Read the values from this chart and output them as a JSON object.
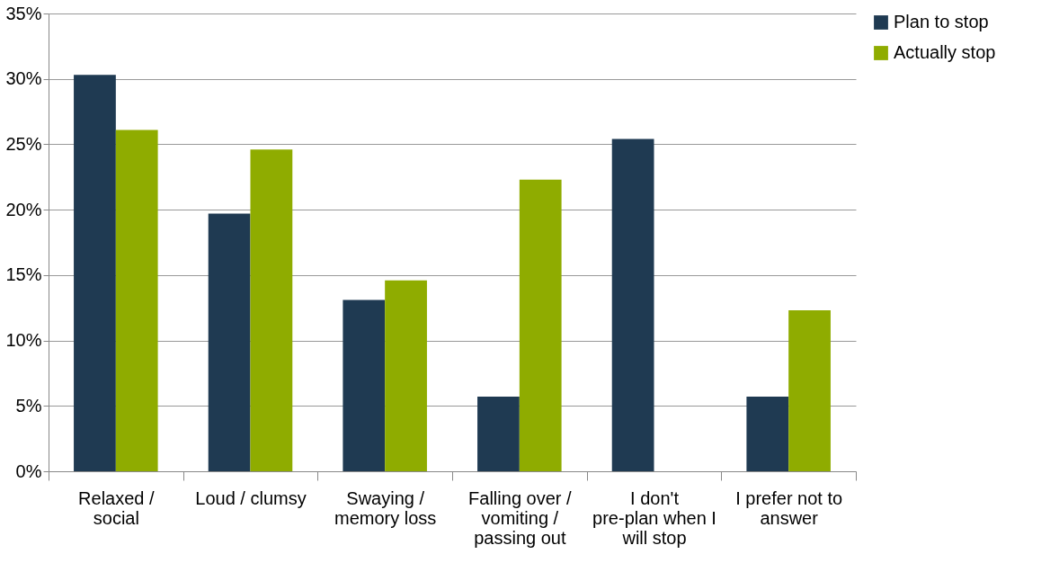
{
  "chart_data": {
    "type": "bar",
    "categories": [
      "Relaxed / social",
      "Loud / clumsy",
      "Swaying / memory loss",
      "Falling over / vomiting / passing out",
      "I don't pre-plan when I will stop",
      "I prefer not to answer"
    ],
    "series": [
      {
        "name": "Plan to stop",
        "color": "#1f3a52",
        "values": [
          30.3,
          19.7,
          13.1,
          5.7,
          25.4,
          5.7
        ]
      },
      {
        "name": "Actually stop",
        "color": "#8fac00",
        "values": [
          26.1,
          24.6,
          14.6,
          22.3,
          null,
          12.3
        ]
      }
    ],
    "ylim": [
      0,
      35
    ],
    "yticks": [
      {
        "value": 0,
        "label": "0%"
      },
      {
        "value": 5,
        "label": "5%"
      },
      {
        "value": 10,
        "label": "10%"
      },
      {
        "value": 15,
        "label": "15%"
      },
      {
        "value": 20,
        "label": "20%"
      },
      {
        "value": 25,
        "label": "25%"
      },
      {
        "value": 30,
        "label": "30%"
      },
      {
        "value": 35,
        "label": "35%"
      }
    ],
    "grid": "y",
    "legend": "right"
  }
}
